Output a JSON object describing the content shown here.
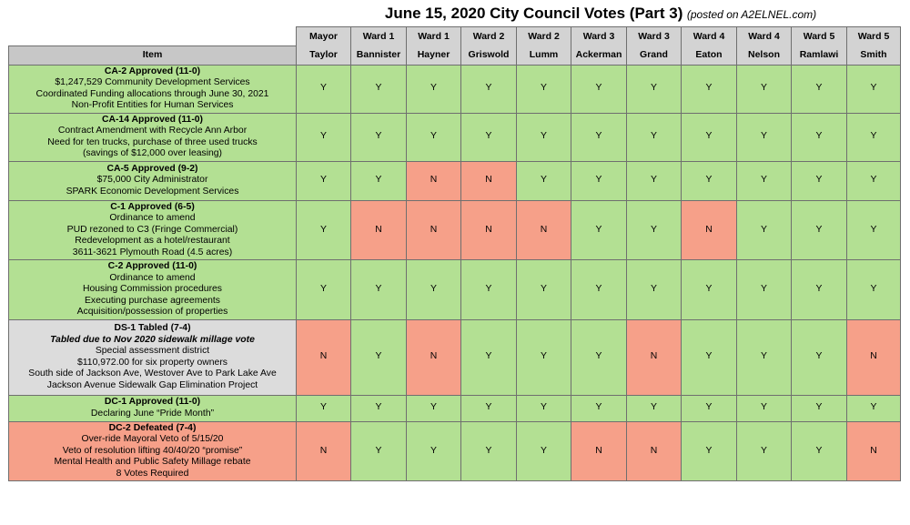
{
  "title": {
    "main": "June 15, 2020 City Council Votes (Part 3)",
    "sub": "(posted on A2ELNEL.com)"
  },
  "colors": {
    "yes": "#b3e093",
    "no": "#f6a089",
    "tabled": "#dcdcdc",
    "header": "#d3d3d3"
  },
  "header": {
    "item_label": "Item",
    "members": [
      {
        "role": "Mayor",
        "name": "Taylor"
      },
      {
        "role": "Ward 1",
        "name": "Bannister"
      },
      {
        "role": "Ward 1",
        "name": "Hayner"
      },
      {
        "role": "Ward 2",
        "name": "Griswold"
      },
      {
        "role": "Ward 2",
        "name": "Lumm"
      },
      {
        "role": "Ward 3",
        "name": "Ackerman"
      },
      {
        "role": "Ward 3",
        "name": "Grand"
      },
      {
        "role": "Ward 4",
        "name": "Eaton"
      },
      {
        "role": "Ward 4",
        "name": "Nelson"
      },
      {
        "role": "Ward 5",
        "name": "Ramlawi"
      },
      {
        "role": "Ward 5",
        "name": "Smith"
      }
    ]
  },
  "rows": [
    {
      "status": "approved",
      "title": "CA-2 Approved (11-0)",
      "note": "",
      "lines": [
        "$1,247,529  Community Development Services",
        "Coordinated Funding allocations through June 30, 2021",
        "Non-Profit Entities for Human Services"
      ],
      "votes": [
        "Y",
        "Y",
        "Y",
        "Y",
        "Y",
        "Y",
        "Y",
        "Y",
        "Y",
        "Y",
        "Y"
      ]
    },
    {
      "status": "approved",
      "title": "CA-14 Approved (11-0)",
      "note": "",
      "lines": [
        "Contract Amendment with Recycle Ann Arbor",
        "Need for ten trucks, purchase of three used trucks",
        "(savings of $12,000 over leasing)"
      ],
      "votes": [
        "Y",
        "Y",
        "Y",
        "Y",
        "Y",
        "Y",
        "Y",
        "Y",
        "Y",
        "Y",
        "Y"
      ]
    },
    {
      "status": "approved",
      "title": "CA-5 Approved (9-2)",
      "note": "",
      "lines": [
        "$75,000  City Administrator",
        "SPARK Economic Development Services"
      ],
      "votes": [
        "Y",
        "Y",
        "N",
        "N",
        "Y",
        "Y",
        "Y",
        "Y",
        "Y",
        "Y",
        "Y"
      ]
    },
    {
      "status": "approved",
      "title": "C-1 Approved (6-5)",
      "note": "",
      "lines": [
        "Ordinance to amend",
        "PUD rezoned to C3 (Fringe Commercial)",
        "Redevelopment as a hotel/restaurant",
        "3611-3621 Plymouth Road (4.5 acres)"
      ],
      "votes": [
        "Y",
        "N",
        "N",
        "N",
        "N",
        "Y",
        "Y",
        "N",
        "Y",
        "Y",
        "Y"
      ]
    },
    {
      "status": "approved",
      "title": "C-2 Approved (11-0)",
      "note": "",
      "lines": [
        "Ordinance to amend",
        "Housing Commission procedures",
        "Executing purchase agreements",
        "Acquisition/possession of properties"
      ],
      "votes": [
        "Y",
        "Y",
        "Y",
        "Y",
        "Y",
        "Y",
        "Y",
        "Y",
        "Y",
        "Y",
        "Y"
      ]
    },
    {
      "status": "tabled",
      "title": "DS-1 Tabled (7-4)",
      "note": "Tabled due to Nov 2020 sidewalk millage vote",
      "lines": [
        "Special assessment district",
        "$110,972.00 for six property owners",
        "South side of Jackson Ave, Westover Ave to Park Lake Ave",
        "Jackson Avenue Sidewalk Gap Elimination Project"
      ],
      "votes": [
        "N",
        "Y",
        "N",
        "Y",
        "Y",
        "Y",
        "N",
        "Y",
        "Y",
        "Y",
        "N"
      ]
    },
    {
      "status": "approved",
      "title": "DC-1 Approved (11-0)",
      "note": "",
      "lines": [
        "Declaring June “Pride Month”"
      ],
      "votes": [
        "Y",
        "Y",
        "Y",
        "Y",
        "Y",
        "Y",
        "Y",
        "Y",
        "Y",
        "Y",
        "Y"
      ]
    },
    {
      "status": "defeated",
      "title": "DC-2 Defeated (7-4)",
      "note": "",
      "lines": [
        "Over-ride Mayoral Veto of 5/15/20",
        "Veto of resolution lifting 40/40/20 “promise”",
        "Mental Health and Public Safety Millage rebate",
        "8 Votes Required"
      ],
      "votes": [
        "N",
        "Y",
        "Y",
        "Y",
        "Y",
        "N",
        "N",
        "Y",
        "Y",
        "Y",
        "N"
      ]
    }
  ]
}
